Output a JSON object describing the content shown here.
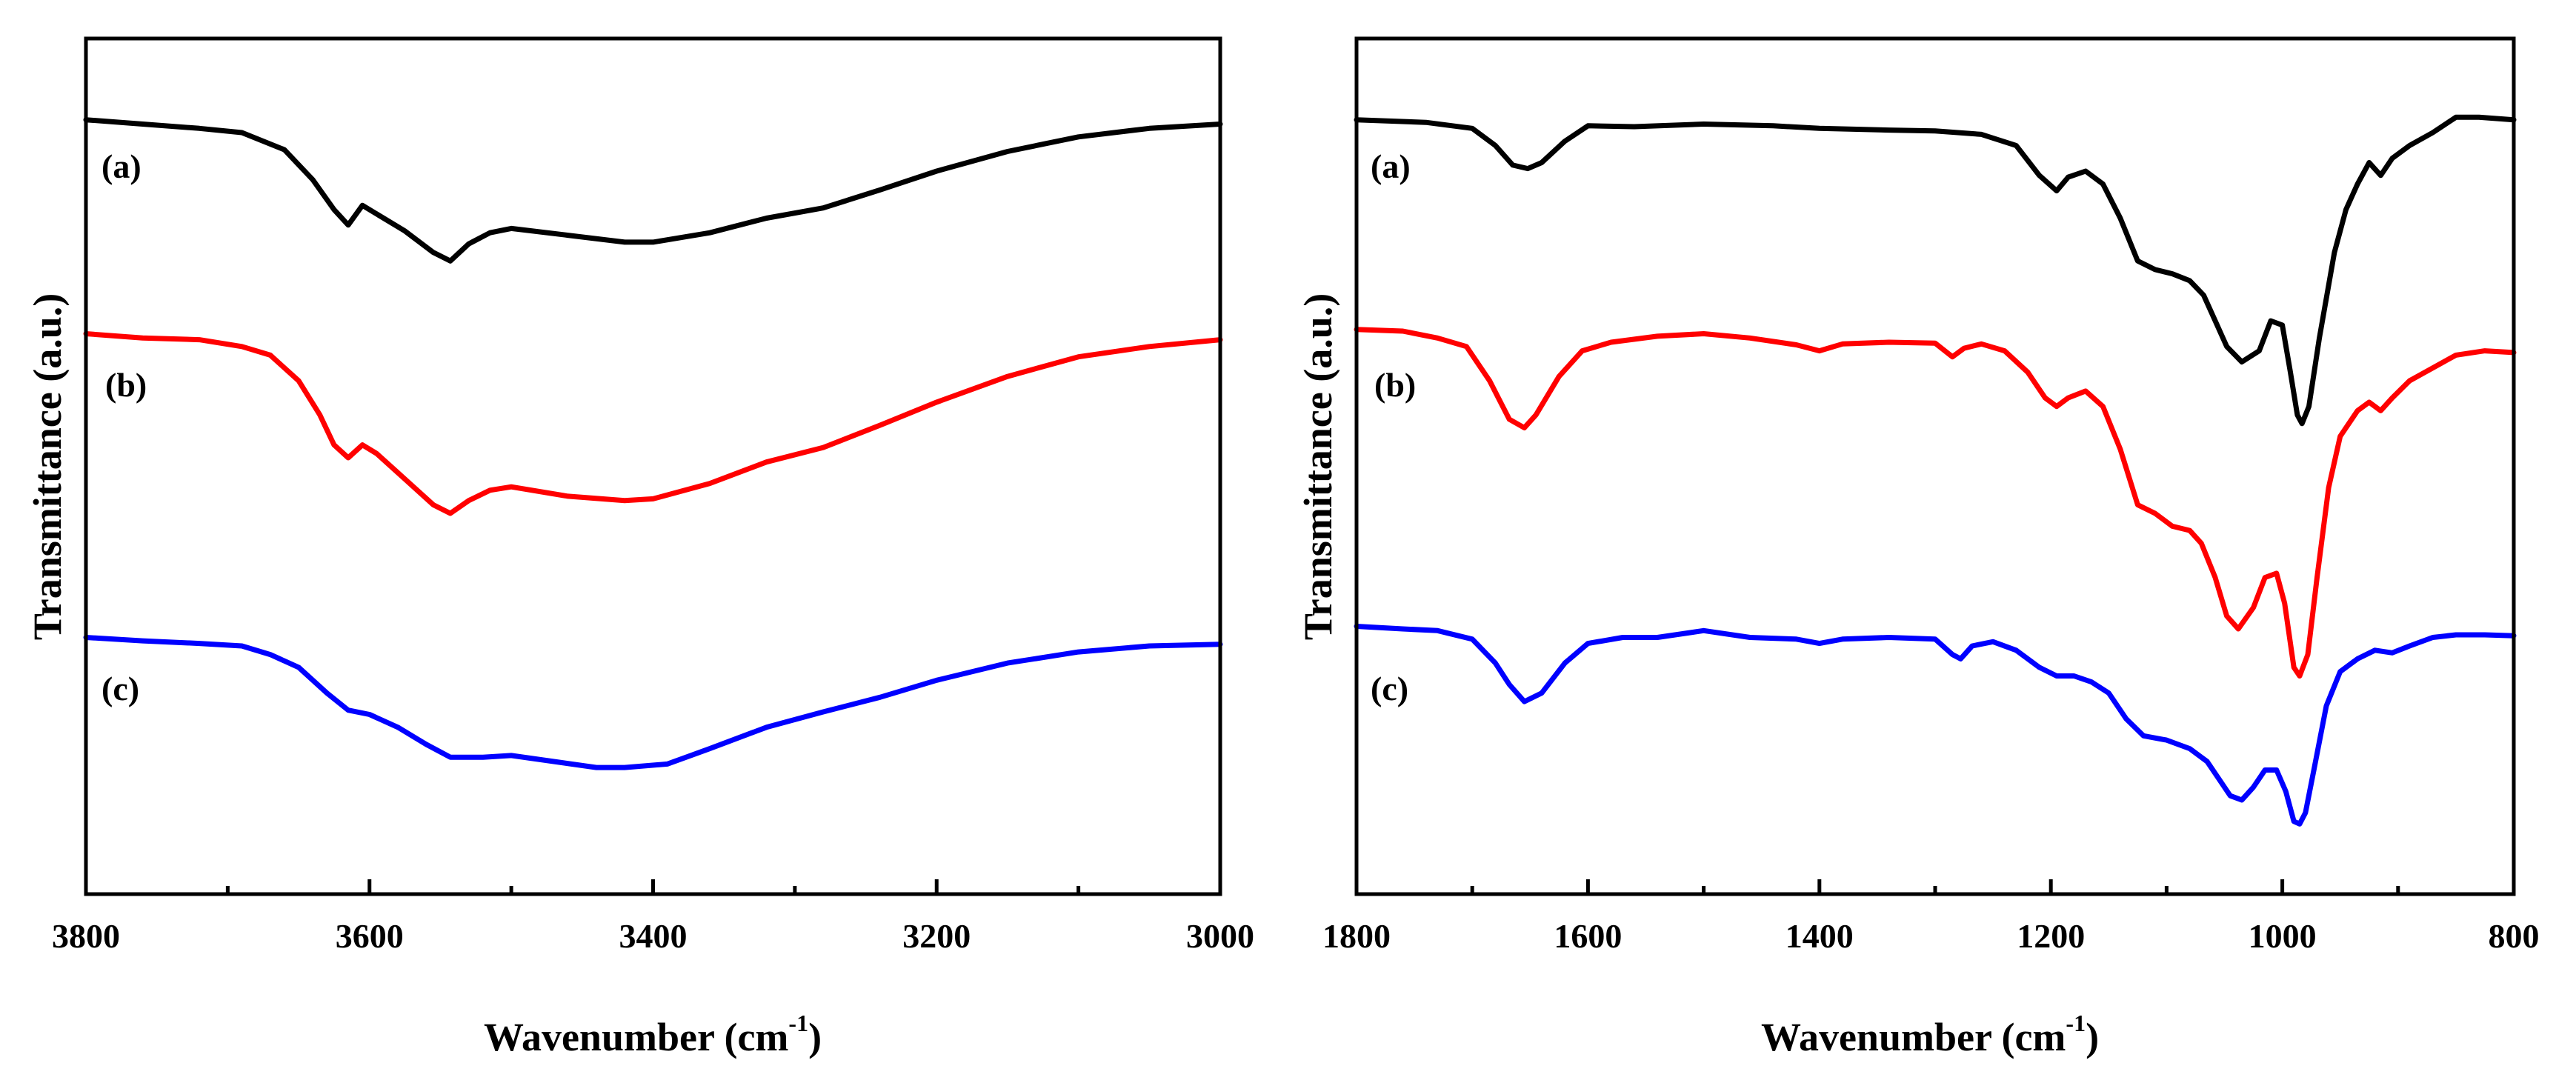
{
  "chart_data": [
    {
      "type": "line",
      "panel": "left",
      "xlabel": "Wavenumber (cm",
      "xlabel_sup": "-1",
      "xlabel_close": ")",
      "ylabel": "Transmittance (a.u.)",
      "xlim": [
        3800,
        3000
      ],
      "ylim": [
        0,
        100
      ],
      "x_reversed": true,
      "y_ticks_labeled": false,
      "xticks": [
        "3800",
        "3600",
        "3400",
        "3200",
        "3000"
      ],
      "series": [
        {
          "name": "(a)",
          "color": "#000000",
          "points": [
            [
              3800,
              90.5
            ],
            [
              3760,
              90
            ],
            [
              3720,
              89.5
            ],
            [
              3690,
              89
            ],
            [
              3660,
              87
            ],
            [
              3640,
              83.5
            ],
            [
              3625,
              80
            ],
            [
              3615,
              78.2
            ],
            [
              3605,
              80.5
            ],
            [
              3595,
              79.5
            ],
            [
              3575,
              77.5
            ],
            [
              3555,
              75
            ],
            [
              3543,
              74
            ],
            [
              3530,
              76
            ],
            [
              3515,
              77.3
            ],
            [
              3500,
              77.8
            ],
            [
              3460,
              77
            ],
            [
              3420,
              76.2
            ],
            [
              3400,
              76.2
            ],
            [
              3360,
              77.3
            ],
            [
              3320,
              79
            ],
            [
              3280,
              80.2
            ],
            [
              3240,
              82.3
            ],
            [
              3200,
              84.5
            ],
            [
              3150,
              86.8
            ],
            [
              3100,
              88.5
            ],
            [
              3050,
              89.5
            ],
            [
              3000,
              90
            ]
          ]
        },
        {
          "name": "(b)",
          "color": "#ff0000",
          "points": [
            [
              3800,
              65.5
            ],
            [
              3760,
              65
            ],
            [
              3720,
              64.8
            ],
            [
              3690,
              64
            ],
            [
              3670,
              63
            ],
            [
              3650,
              60
            ],
            [
              3635,
              56
            ],
            [
              3625,
              52.5
            ],
            [
              3615,
              51
            ],
            [
              3605,
              52.5
            ],
            [
              3595,
              51.5
            ],
            [
              3575,
              48.5
            ],
            [
              3555,
              45.5
            ],
            [
              3543,
              44.5
            ],
            [
              3530,
              46
            ],
            [
              3515,
              47.2
            ],
            [
              3500,
              47.6
            ],
            [
              3460,
              46.5
            ],
            [
              3420,
              46
            ],
            [
              3400,
              46.2
            ],
            [
              3360,
              48
            ],
            [
              3320,
              50.5
            ],
            [
              3280,
              52.2
            ],
            [
              3240,
              54.8
            ],
            [
              3200,
              57.5
            ],
            [
              3150,
              60.5
            ],
            [
              3100,
              62.8
            ],
            [
              3050,
              64
            ],
            [
              3000,
              64.8
            ]
          ]
        },
        {
          "name": "(c)",
          "color": "#0000ff",
          "points": [
            [
              3800,
              30
            ],
            [
              3760,
              29.6
            ],
            [
              3720,
              29.3
            ],
            [
              3690,
              29
            ],
            [
              3670,
              28
            ],
            [
              3650,
              26.5
            ],
            [
              3630,
              23.5
            ],
            [
              3615,
              21.5
            ],
            [
              3600,
              21
            ],
            [
              3580,
              19.5
            ],
            [
              3560,
              17.5
            ],
            [
              3543,
              16
            ],
            [
              3520,
              16
            ],
            [
              3500,
              16.2
            ],
            [
              3470,
              15.5
            ],
            [
              3440,
              14.8
            ],
            [
              3420,
              14.8
            ],
            [
              3390,
              15.2
            ],
            [
              3360,
              17
            ],
            [
              3320,
              19.5
            ],
            [
              3280,
              21.3
            ],
            [
              3240,
              23
            ],
            [
              3200,
              25
            ],
            [
              3150,
              27
            ],
            [
              3100,
              28.3
            ],
            [
              3050,
              29
            ],
            [
              3000,
              29.2
            ]
          ]
        }
      ]
    },
    {
      "type": "line",
      "panel": "right",
      "xlabel": "Wavenumber (cm",
      "xlabel_sup": "-1",
      "xlabel_close": ")",
      "ylabel": "Transmittance (a.u.)",
      "xlim": [
        1800,
        800
      ],
      "ylim": [
        0,
        100
      ],
      "x_reversed": true,
      "y_ticks_labeled": false,
      "xticks": [
        "1800",
        "1600",
        "1400",
        "1200",
        "1000",
        "800"
      ],
      "series": [
        {
          "name": "(a)",
          "color": "#000000",
          "points": [
            [
              1800,
              90.5
            ],
            [
              1740,
              90.2
            ],
            [
              1700,
              89.5
            ],
            [
              1680,
              87.5
            ],
            [
              1665,
              85.2
            ],
            [
              1652,
              84.8
            ],
            [
              1640,
              85.5
            ],
            [
              1620,
              88
            ],
            [
              1600,
              89.8
            ],
            [
              1560,
              89.7
            ],
            [
              1500,
              90
            ],
            [
              1440,
              89.8
            ],
            [
              1400,
              89.5
            ],
            [
              1340,
              89.3
            ],
            [
              1300,
              89.2
            ],
            [
              1260,
              88.8
            ],
            [
              1230,
              87.5
            ],
            [
              1210,
              84
            ],
            [
              1195,
              82.2
            ],
            [
              1185,
              83.8
            ],
            [
              1170,
              84.5
            ],
            [
              1155,
              83
            ],
            [
              1140,
              79
            ],
            [
              1125,
              74
            ],
            [
              1110,
              73
            ],
            [
              1095,
              72.5
            ],
            [
              1080,
              71.7
            ],
            [
              1068,
              70
            ],
            [
              1058,
              67
            ],
            [
              1048,
              64
            ],
            [
              1035,
              62.2
            ],
            [
              1020,
              63.5
            ],
            [
              1010,
              67
            ],
            [
              1000,
              66.5
            ],
            [
              993,
              61
            ],
            [
              987,
              56
            ],
            [
              983,
              55
            ],
            [
              977,
              57
            ],
            [
              968,
              65
            ],
            [
              955,
              75
            ],
            [
              945,
              80
            ],
            [
              935,
              83
            ],
            [
              925,
              85.5
            ],
            [
              915,
              84
            ],
            [
              905,
              86
            ],
            [
              890,
              87.5
            ],
            [
              870,
              89
            ],
            [
              850,
              90.8
            ],
            [
              830,
              90.8
            ],
            [
              800,
              90.5
            ]
          ]
        },
        {
          "name": "(b)",
          "color": "#ff0000",
          "points": [
            [
              1800,
              66
            ],
            [
              1760,
              65.8
            ],
            [
              1730,
              65
            ],
            [
              1705,
              64
            ],
            [
              1685,
              60
            ],
            [
              1668,
              55.5
            ],
            [
              1655,
              54.5
            ],
            [
              1645,
              56
            ],
            [
              1625,
              60.5
            ],
            [
              1605,
              63.5
            ],
            [
              1580,
              64.5
            ],
            [
              1540,
              65.2
            ],
            [
              1500,
              65.5
            ],
            [
              1460,
              65
            ],
            [
              1420,
              64.2
            ],
            [
              1400,
              63.5
            ],
            [
              1380,
              64.3
            ],
            [
              1340,
              64.5
            ],
            [
              1300,
              64.4
            ],
            [
              1285,
              62.8
            ],
            [
              1275,
              63.8
            ],
            [
              1260,
              64.3
            ],
            [
              1240,
              63.5
            ],
            [
              1220,
              61
            ],
            [
              1205,
              58
            ],
            [
              1195,
              57
            ],
            [
              1185,
              58
            ],
            [
              1170,
              58.8
            ],
            [
              1155,
              57
            ],
            [
              1140,
              52
            ],
            [
              1125,
              45.5
            ],
            [
              1110,
              44.5
            ],
            [
              1095,
              43
            ],
            [
              1080,
              42.5
            ],
            [
              1070,
              41
            ],
            [
              1058,
              37
            ],
            [
              1048,
              32.5
            ],
            [
              1038,
              31
            ],
            [
              1025,
              33.5
            ],
            [
              1015,
              37
            ],
            [
              1005,
              37.5
            ],
            [
              998,
              34
            ],
            [
              990,
              26.5
            ],
            [
              985,
              25.5
            ],
            [
              978,
              28
            ],
            [
              970,
              37
            ],
            [
              960,
              47.5
            ],
            [
              950,
              53.5
            ],
            [
              935,
              56.5
            ],
            [
              925,
              57.5
            ],
            [
              915,
              56.5
            ],
            [
              905,
              58
            ],
            [
              890,
              60
            ],
            [
              870,
              61.5
            ],
            [
              850,
              63
            ],
            [
              825,
              63.5
            ],
            [
              800,
              63.3
            ]
          ]
        },
        {
          "name": "(c)",
          "color": "#0000ff",
          "points": [
            [
              1800,
              31.3
            ],
            [
              1760,
              31
            ],
            [
              1730,
              30.8
            ],
            [
              1700,
              29.8
            ],
            [
              1680,
              27
            ],
            [
              1668,
              24.5
            ],
            [
              1655,
              22.5
            ],
            [
              1640,
              23.5
            ],
            [
              1620,
              27
            ],
            [
              1600,
              29.3
            ],
            [
              1570,
              30
            ],
            [
              1540,
              30
            ],
            [
              1500,
              30.8
            ],
            [
              1460,
              30
            ],
            [
              1420,
              29.8
            ],
            [
              1400,
              29.3
            ],
            [
              1380,
              29.8
            ],
            [
              1340,
              30
            ],
            [
              1300,
              29.8
            ],
            [
              1285,
              28
            ],
            [
              1278,
              27.5
            ],
            [
              1268,
              29
            ],
            [
              1250,
              29.5
            ],
            [
              1230,
              28.5
            ],
            [
              1210,
              26.5
            ],
            [
              1195,
              25.5
            ],
            [
              1180,
              25.5
            ],
            [
              1165,
              24.8
            ],
            [
              1150,
              23.5
            ],
            [
              1135,
              20.5
            ],
            [
              1120,
              18.5
            ],
            [
              1100,
              18
            ],
            [
              1080,
              17
            ],
            [
              1065,
              15.5
            ],
            [
              1055,
              13.5
            ],
            [
              1045,
              11.5
            ],
            [
              1035,
              11
            ],
            [
              1025,
              12.5
            ],
            [
              1015,
              14.5
            ],
            [
              1005,
              14.5
            ],
            [
              997,
              12
            ],
            [
              990,
              8.5
            ],
            [
              985,
              8.2
            ],
            [
              980,
              9.5
            ],
            [
              972,
              15
            ],
            [
              962,
              22
            ],
            [
              950,
              26
            ],
            [
              935,
              27.5
            ],
            [
              920,
              28.5
            ],
            [
              905,
              28.2
            ],
            [
              890,
              29
            ],
            [
              870,
              30
            ],
            [
              850,
              30.3
            ],
            [
              825,
              30.3
            ],
            [
              800,
              30.2
            ]
          ]
        }
      ]
    }
  ]
}
